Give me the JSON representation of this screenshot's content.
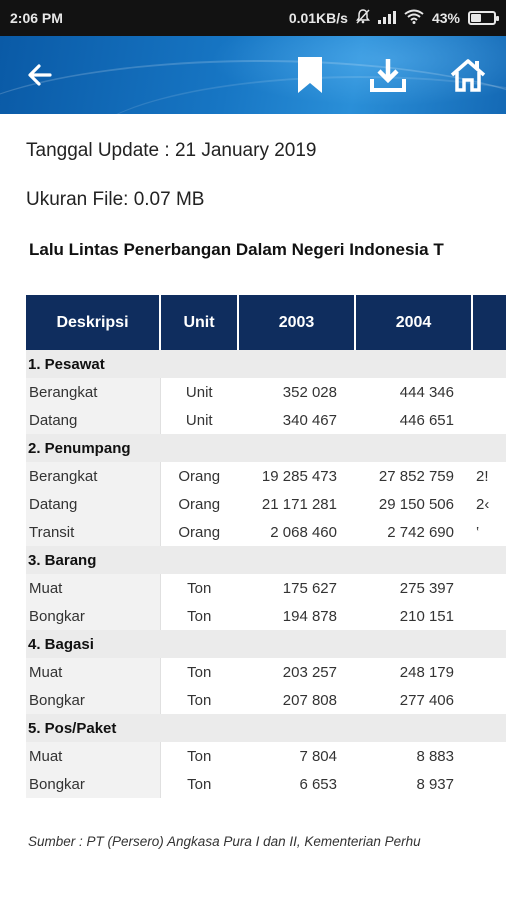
{
  "status_bar": {
    "time": "2:06 PM",
    "network_speed": "0.01KB/s",
    "battery_percent": "43%",
    "battery_level": 0.43,
    "icons": [
      "mute-icon",
      "signal-icon",
      "wifi-icon",
      "battery-icon"
    ]
  },
  "app_bar": {
    "icons": [
      "back-arrow-icon",
      "bookmark-icon",
      "download-icon",
      "home-icon"
    ]
  },
  "info": {
    "update_line": "Tanggal Update : 21 January 2019",
    "file_size_line": "Ukuran File: 0.07 MB"
  },
  "table": {
    "title": "Lalu Lintas Penerbangan Dalam Negeri Indonesia T",
    "headers": [
      "Deskripsi",
      "Unit",
      "2003",
      "2004",
      ""
    ],
    "rows": [
      {
        "type": "group",
        "label": "1. Pesawat"
      },
      {
        "type": "item",
        "desc": "Berangkat",
        "unit": "Unit",
        "v2003": "352 028",
        "v2004": "444 346",
        "vnext": ""
      },
      {
        "type": "item",
        "desc": "Datang",
        "unit": "Unit",
        "v2003": "340 467",
        "v2004": "446 651",
        "vnext": ""
      },
      {
        "type": "group",
        "label": "2. Penumpang"
      },
      {
        "type": "item",
        "desc": "Berangkat",
        "unit": "Orang",
        "v2003": "19 285 473",
        "v2004": "27 852 759",
        "vnext": "2!"
      },
      {
        "type": "item",
        "desc": "Datang",
        "unit": "Orang",
        "v2003": "21 171 281",
        "v2004": "29 150 506",
        "vnext": "2‹"
      },
      {
        "type": "item",
        "desc": "Transit",
        "unit": "Orang",
        "v2003": "2 068 460",
        "v2004": "2 742 690",
        "vnext": "‛"
      },
      {
        "type": "group",
        "label": "3. Barang"
      },
      {
        "type": "item",
        "desc": "Muat",
        "unit": "Ton",
        "v2003": "175 627",
        "v2004": "275 397",
        "vnext": ""
      },
      {
        "type": "item",
        "desc": "Bongkar",
        "unit": "Ton",
        "v2003": "194 878",
        "v2004": "210 151",
        "vnext": ""
      },
      {
        "type": "group",
        "label": "4. Bagasi"
      },
      {
        "type": "item",
        "desc": "Muat",
        "unit": "Ton",
        "v2003": "203 257",
        "v2004": "248 179",
        "vnext": ""
      },
      {
        "type": "item",
        "desc": "Bongkar",
        "unit": "Ton",
        "v2003": "207 808",
        "v2004": "277 406",
        "vnext": ""
      },
      {
        "type": "group",
        "label": "5. Pos/Paket"
      },
      {
        "type": "item",
        "desc": "Muat",
        "unit": "Ton",
        "v2003": "7 804",
        "v2004": "8 883",
        "vnext": ""
      },
      {
        "type": "item",
        "desc": "Bongkar",
        "unit": "Ton",
        "v2003": "6 653",
        "v2004": "8 937",
        "vnext": ""
      }
    ]
  },
  "source": "Sumber : PT (Persero) Angkasa Pura I dan II, Kementerian Perhu"
}
